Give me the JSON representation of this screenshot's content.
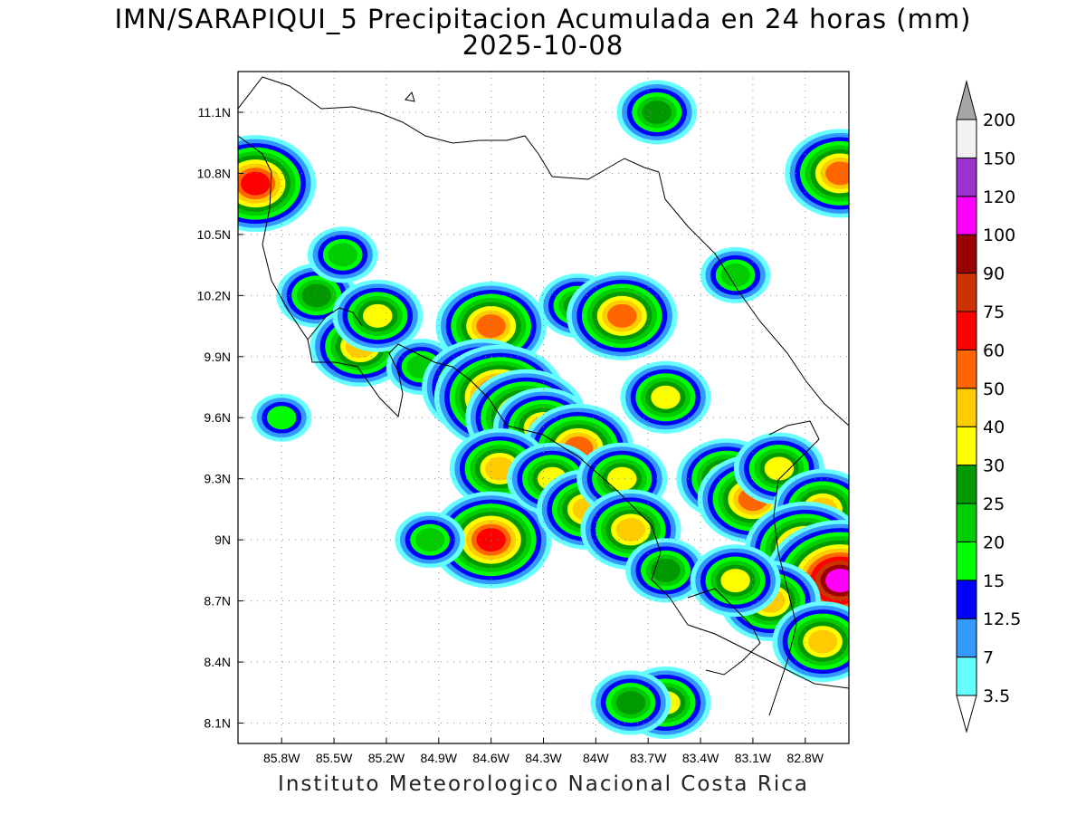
{
  "title": {
    "line1": "IMN/SARAPIQUI_5 Precipitacion Acumulada en 24 horas (mm)",
    "line2": "2025-10-08"
  },
  "footer": "Instituto Meteorologico Nacional Costa Rica",
  "map": {
    "lon_range": [
      -86.05,
      -82.55
    ],
    "lat_range": [
      8.0,
      11.3
    ],
    "lon_ticks": [
      {
        "value": -85.8,
        "label": "85.8W"
      },
      {
        "value": -85.5,
        "label": "85.5W"
      },
      {
        "value": -85.2,
        "label": "85.2W"
      },
      {
        "value": -84.9,
        "label": "84.9W"
      },
      {
        "value": -84.6,
        "label": "84.6W"
      },
      {
        "value": -84.3,
        "label": "84.3W"
      },
      {
        "value": -84.0,
        "label": "84W"
      },
      {
        "value": -83.7,
        "label": "83.7W"
      },
      {
        "value": -83.4,
        "label": "83.4W"
      },
      {
        "value": -83.1,
        "label": "83.1W"
      },
      {
        "value": -82.8,
        "label": "82.8W"
      }
    ],
    "lat_ticks": [
      {
        "value": 11.1,
        "label": "11.1N"
      },
      {
        "value": 10.8,
        "label": "10.8N"
      },
      {
        "value": 10.5,
        "label": "10.5N"
      },
      {
        "value": 10.2,
        "label": "10.2N"
      },
      {
        "value": 9.9,
        "label": "9.9N"
      },
      {
        "value": 9.6,
        "label": "9.6N"
      },
      {
        "value": 9.3,
        "label": "9.3N"
      },
      {
        "value": 9.0,
        "label": "9N"
      },
      {
        "value": 8.7,
        "label": "8.7N"
      },
      {
        "value": 8.4,
        "label": "8.4N"
      },
      {
        "value": 8.1,
        "label": "8.1N"
      }
    ],
    "grid": "dotted"
  },
  "colorbar": {
    "levels": [
      {
        "label": "3.5",
        "color": "#66ffff"
      },
      {
        "label": "7",
        "color": "#3399ff"
      },
      {
        "label": "12.5",
        "color": "#0000ff"
      },
      {
        "label": "15",
        "color": "#00ff00"
      },
      {
        "label": "20",
        "color": "#00cc00"
      },
      {
        "label": "25",
        "color": "#009900"
      },
      {
        "label": "30",
        "color": "#ffff00"
      },
      {
        "label": "40",
        "color": "#ffcc00"
      },
      {
        "label": "50",
        "color": "#ff6600"
      },
      {
        "label": "60",
        "color": "#ff0000"
      },
      {
        "label": "75",
        "color": "#cc3300"
      },
      {
        "label": "90",
        "color": "#990000"
      },
      {
        "label": "100",
        "color": "#ff00ff"
      },
      {
        "label": "120",
        "color": "#9933cc"
      },
      {
        "label": "150",
        "color": "#f2f2f2"
      },
      {
        "label": "200",
        "color": "#a6a6a6"
      }
    ]
  },
  "rain_cells": [
    {
      "lon": -85.6,
      "lat": 10.2,
      "mm": 25
    },
    {
      "lon": -85.35,
      "lat": 9.95,
      "mm": 40
    },
    {
      "lon": -85.25,
      "lat": 10.1,
      "mm": 30
    },
    {
      "lon": -85.45,
      "lat": 10.4,
      "mm": 20
    },
    {
      "lon": -85.0,
      "lat": 9.85,
      "mm": 20
    },
    {
      "lon": -84.6,
      "lat": 10.05,
      "mm": 50
    },
    {
      "lon": -84.65,
      "lat": 9.75,
      "mm": 60
    },
    {
      "lon": -84.55,
      "lat": 9.7,
      "mm": 75
    },
    {
      "lon": -84.4,
      "lat": 9.6,
      "mm": 60
    },
    {
      "lon": -84.3,
      "lat": 9.55,
      "mm": 40
    },
    {
      "lon": -84.1,
      "lat": 9.45,
      "mm": 50
    },
    {
      "lon": -84.55,
      "lat": 9.35,
      "mm": 40
    },
    {
      "lon": -84.6,
      "lat": 9.0,
      "mm": 60
    },
    {
      "lon": -84.25,
      "lat": 9.3,
      "mm": 30
    },
    {
      "lon": -84.05,
      "lat": 9.15,
      "mm": 40
    },
    {
      "lon": -83.85,
      "lat": 9.3,
      "mm": 30
    },
    {
      "lon": -83.8,
      "lat": 9.05,
      "mm": 40
    },
    {
      "lon": -83.6,
      "lat": 8.85,
      "mm": 25
    },
    {
      "lon": -84.1,
      "lat": 10.15,
      "mm": 25
    },
    {
      "lon": -83.85,
      "lat": 10.1,
      "mm": 50
    },
    {
      "lon": -83.6,
      "lat": 9.7,
      "mm": 30
    },
    {
      "lon": -83.25,
      "lat": 9.3,
      "mm": 40
    },
    {
      "lon": -83.1,
      "lat": 9.2,
      "mm": 50
    },
    {
      "lon": -82.95,
      "lat": 9.35,
      "mm": 30
    },
    {
      "lon": -82.7,
      "lat": 9.15,
      "mm": 40
    },
    {
      "lon": -82.8,
      "lat": 8.95,
      "mm": 60
    },
    {
      "lon": -82.7,
      "lat": 8.75,
      "mm": 60
    },
    {
      "lon": -82.6,
      "lat": 8.8,
      "mm": 100
    },
    {
      "lon": -83.0,
      "lat": 8.7,
      "mm": 40
    },
    {
      "lon": -83.2,
      "lat": 8.8,
      "mm": 30
    },
    {
      "lon": -82.7,
      "lat": 8.5,
      "mm": 40
    },
    {
      "lon": -83.6,
      "lat": 8.2,
      "mm": 30
    },
    {
      "lon": -83.8,
      "lat": 8.2,
      "mm": 25
    },
    {
      "lon": -85.95,
      "lat": 10.75,
      "mm": 60
    },
    {
      "lon": -82.6,
      "lat": 10.8,
      "mm": 50
    },
    {
      "lon": -83.65,
      "lat": 11.1,
      "mm": 25
    },
    {
      "lon": -83.2,
      "lat": 10.3,
      "mm": 20
    },
    {
      "lon": -85.8,
      "lat": 9.6,
      "mm": 15
    },
    {
      "lon": -84.95,
      "lat": 9.0,
      "mm": 20
    }
  ]
}
